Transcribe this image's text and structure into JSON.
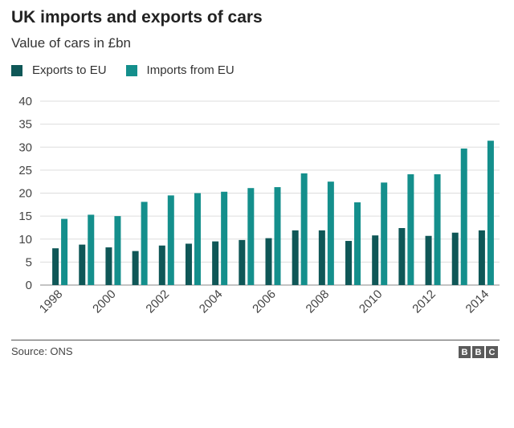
{
  "chart_data": {
    "type": "bar",
    "title": "UK imports and exports of cars",
    "subtitle": "Value of cars in £bn",
    "xlabel": "",
    "ylabel": "",
    "ylim": [
      0,
      40
    ],
    "yticks": [
      0,
      5,
      10,
      15,
      20,
      25,
      30,
      35,
      40
    ],
    "grid": true,
    "legend_position": "top-left",
    "categories": [
      "1998",
      "1999",
      "2000",
      "2001",
      "2002",
      "2003",
      "2004",
      "2005",
      "2006",
      "2007",
      "2008",
      "2009",
      "2010",
      "2011",
      "2012",
      "2013",
      "2014"
    ],
    "tick_labels": [
      "1998",
      "2000",
      "2002",
      "2004",
      "2006",
      "2008",
      "2010",
      "2012",
      "2014"
    ],
    "series": [
      {
        "name": "Exports to EU",
        "color": "#0f5757",
        "values": [
          8.0,
          8.8,
          8.2,
          7.4,
          8.6,
          9.0,
          9.5,
          9.8,
          10.2,
          11.9,
          11.9,
          9.6,
          10.8,
          12.4,
          10.7,
          11.4,
          11.9
        ]
      },
      {
        "name": "Imports from EU",
        "color": "#148f8c",
        "values": [
          14.4,
          15.3,
          15.0,
          18.1,
          19.5,
          20.0,
          20.3,
          21.1,
          21.3,
          24.3,
          22.5,
          18.0,
          22.3,
          24.1,
          24.1,
          29.7,
          31.4
        ]
      }
    ]
  },
  "legend": {
    "exports_label": "Exports to EU",
    "imports_label": "Imports from EU"
  },
  "footer": {
    "source": "Source: ONS",
    "logo_letters": [
      "B",
      "B",
      "C"
    ]
  }
}
